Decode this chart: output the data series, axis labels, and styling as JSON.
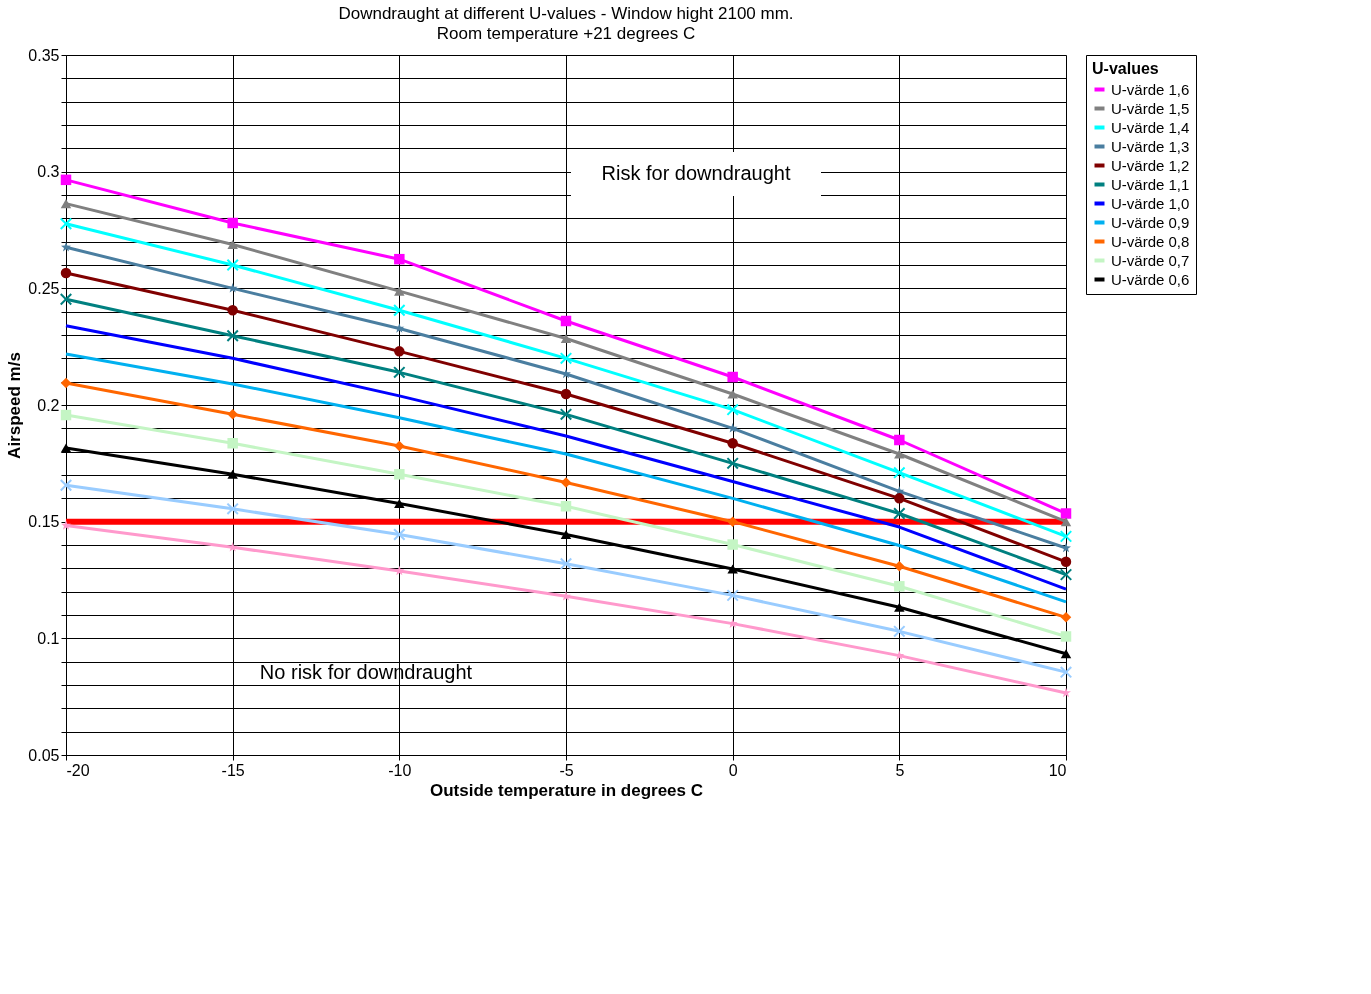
{
  "chart_data": {
    "type": "line",
    "title": "Downdraught  at different U-values - Window hight  2100 mm.",
    "subtitle": "Room temperature +21 degrees C",
    "xlabel": "Outside temperature in degrees C",
    "ylabel": "Airspeed m/s",
    "legend_title": "U-values",
    "x": [
      -20,
      -15,
      -10,
      -5,
      0,
      5,
      10
    ],
    "series": [
      {
        "name": "U-värde 1,6",
        "color": "#ff00ff",
        "marker": "square",
        "values": [
          0.2965,
          0.278,
          0.2625,
          0.236,
          0.212,
          0.185,
          0.1535
        ]
      },
      {
        "name": "U-värde 1,5",
        "color": "#808080",
        "marker": "triangle",
        "values": [
          0.2863,
          0.2688,
          0.2488,
          0.2285,
          0.2047,
          0.179,
          0.15
        ]
      },
      {
        "name": "U-värde 1,4",
        "color": "#00ffff",
        "marker": "cross",
        "values": [
          0.2777,
          0.26,
          0.2406,
          0.22,
          0.198,
          0.171,
          0.1437
        ]
      },
      {
        "name": "U-värde 1,3",
        "color": "#4a7ea0",
        "marker": "star",
        "values": [
          0.2676,
          0.25,
          0.2328,
          0.2133,
          0.19,
          0.163,
          0.1387
        ]
      },
      {
        "name": "U-värde 1,2",
        "color": "#800000",
        "marker": "circle",
        "values": [
          0.2566,
          0.2406,
          0.223,
          0.2047,
          0.1836,
          0.16,
          0.1328
        ]
      },
      {
        "name": "U-värde 1,1",
        "color": "#008080",
        "marker": "cross",
        "values": [
          0.2453,
          0.2297,
          0.214,
          0.196,
          0.175,
          0.1535,
          0.1273
        ]
      },
      {
        "name": "U-värde 1,0",
        "color": "#0000ff",
        "marker": "none",
        "values": [
          0.234,
          0.22,
          0.2039,
          0.1867,
          0.1672,
          0.1477,
          0.1211
        ]
      },
      {
        "name": "U-värde 0,9",
        "color": "#00b0f0",
        "marker": "none",
        "values": [
          0.2219,
          0.209,
          0.1945,
          0.179,
          0.16,
          0.1398,
          0.1156
        ]
      },
      {
        "name": "U-värde 0,8",
        "color": "#ff6600",
        "marker": "diamond",
        "values": [
          0.2094,
          0.196,
          0.1824,
          0.1668,
          0.15,
          0.1309,
          0.109
        ]
      },
      {
        "name": "U-värde 0,7",
        "color": "#c4f5c4",
        "marker": "square",
        "values": [
          0.1957,
          0.1836,
          0.1703,
          0.1566,
          0.1402,
          0.1223,
          0.1008
        ]
      },
      {
        "name": "U-värde 0,6",
        "color": "#000000",
        "marker": "triangle",
        "values": [
          0.1816,
          0.1703,
          0.1578,
          0.1445,
          0.1297,
          0.1133,
          0.0934
        ]
      },
      {
        "color": "#99ccff",
        "marker": "cross",
        "values": [
          0.1656,
          0.1555,
          0.1445,
          0.132,
          0.1184,
          0.103,
          0.0855
        ]
      },
      {
        "color": "#ff99cc",
        "marker": "star",
        "values": [
          0.1484,
          0.139,
          0.1289,
          0.118,
          0.1063,
          0.0926,
          0.0766
        ]
      }
    ],
    "xlim": [
      -20,
      10
    ],
    "xticks": [
      -20,
      -15,
      -10,
      -5,
      0,
      5,
      10
    ],
    "ylim": [
      0.05,
      0.35
    ],
    "yticks": [
      0.05,
      {
        "value": 0.06,
        "label": null
      },
      {
        "value": 0.07,
        "label": null
      },
      {
        "value": 0.08,
        "label": null
      },
      {
        "value": 0.09,
        "label": null
      },
      0.1,
      {
        "value": 0.11,
        "label": null
      },
      {
        "value": 0.12,
        "label": null
      },
      {
        "value": 0.13,
        "label": null
      },
      {
        "value": 0.14,
        "label": null
      },
      0.15,
      {
        "value": 0.16,
        "label": null
      },
      {
        "value": 0.17,
        "label": null
      },
      {
        "value": 0.18,
        "label": null
      },
      {
        "value": 0.19,
        "label": null
      },
      0.2,
      {
        "value": 0.21,
        "label": null
      },
      {
        "value": 0.22,
        "label": null
      },
      {
        "value": 0.23,
        "label": null
      },
      {
        "value": 0.24,
        "label": null
      },
      0.25,
      {
        "value": 0.26,
        "label": null
      },
      {
        "value": 0.27,
        "label": null
      },
      {
        "value": 0.28,
        "label": null
      },
      {
        "value": 0.29,
        "label": null
      },
      0.3,
      {
        "value": 0.31,
        "label": null
      },
      {
        "value": 0.32,
        "label": null
      },
      {
        "value": 0.33,
        "label": null
      },
      {
        "value": 0.34,
        "label": null
      },
      0.35
    ],
    "ref_lines": [
      {
        "axis": "y",
        "value": 0.15,
        "color": "#ff0000"
      }
    ],
    "annotations": [
      "Risk for downdraught",
      "No risk for downdraught"
    ],
    "grid": true,
    "legend": "right",
    "line_style": "solid"
  }
}
